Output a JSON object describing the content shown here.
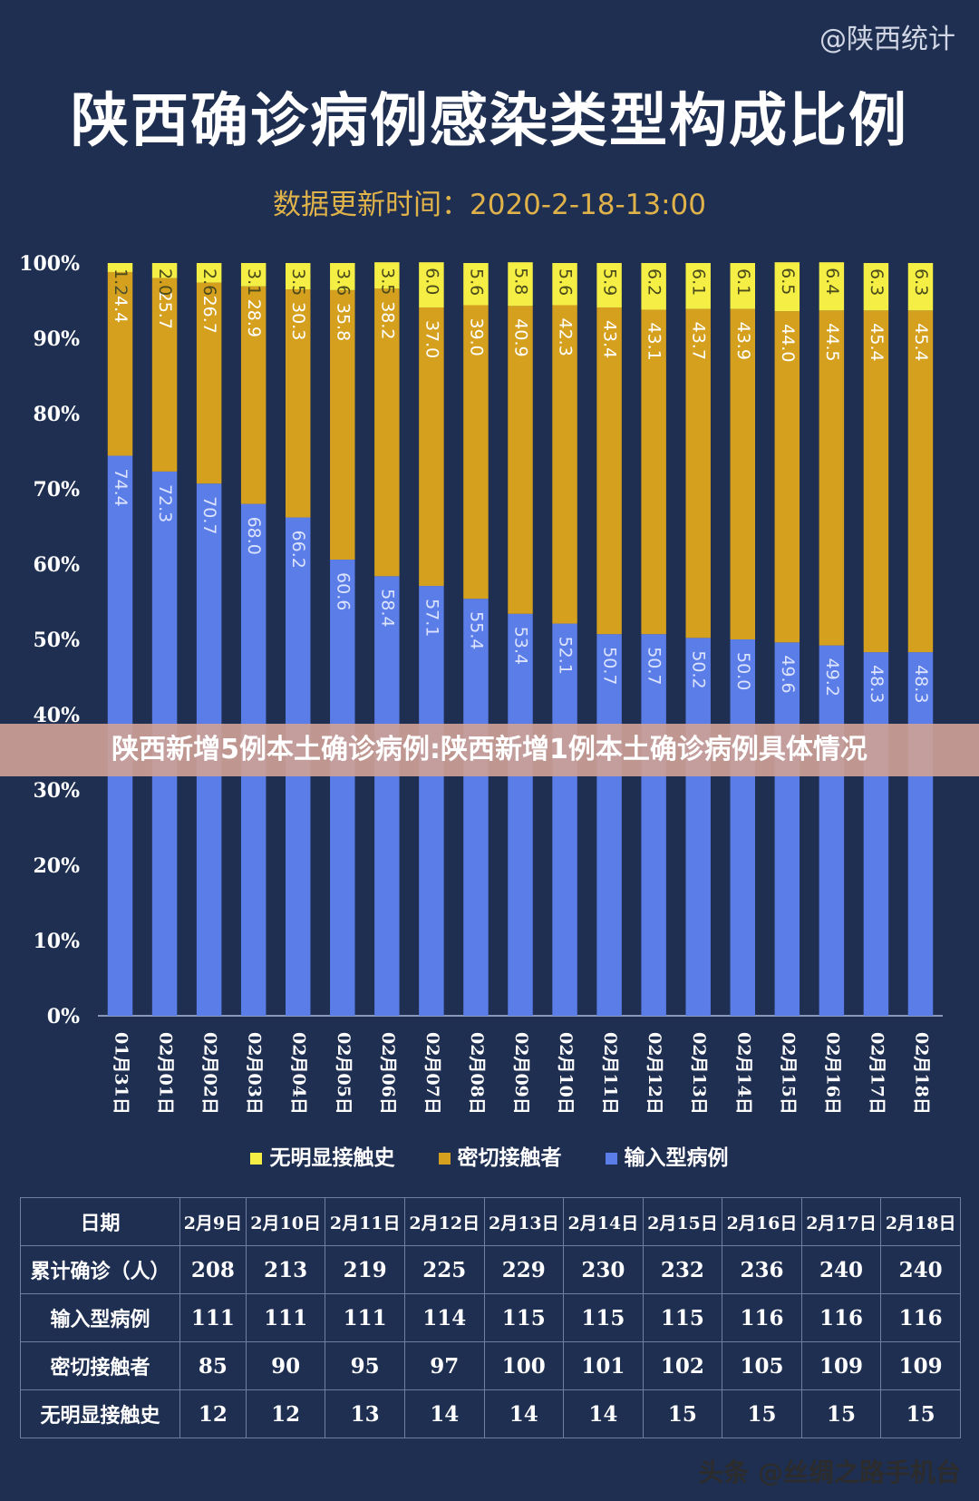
{
  "source": "@陕西统计",
  "title": "陕西确诊病例感染类型构成比例",
  "update_time": "数据更新时间：2020-2-18-13:00",
  "overlay_caption": "陕西新增5例本土确诊病例:陕西新增1例本土确诊病例具体情况",
  "watermark": "头条 @丝绸之路手机台",
  "colors": {
    "background": "#1f2f52",
    "input": "#5b7de8",
    "close_contact": "#d6a01f",
    "unknown_contact": "#f5ef45"
  },
  "legend": [
    {
      "label": "无明显接触史",
      "color": "#f5ef45"
    },
    {
      "label": "密切接触者",
      "color": "#d6a01f"
    },
    {
      "label": "输入型病例",
      "color": "#5b7de8"
    }
  ],
  "chart_data": {
    "type": "bar",
    "stacked": true,
    "categories": [
      "01月31日",
      "02月01日",
      "02月02日",
      "02月03日",
      "02月04日",
      "02月05日",
      "02月06日",
      "02月07日",
      "02月08日",
      "02月09日",
      "02月10日",
      "02月11日",
      "02月12日",
      "02月13日",
      "02月14日",
      "02月15日",
      "02月16日",
      "02月17日",
      "02月18日"
    ],
    "series": [
      {
        "name": "输入型病例",
        "values": [
          74.4,
          72.3,
          70.7,
          68.0,
          66.2,
          60.6,
          58.4,
          57.1,
          55.4,
          53.4,
          52.1,
          50.7,
          50.7,
          50.2,
          50.0,
          49.6,
          49.2,
          48.3,
          48.3
        ]
      },
      {
        "name": "密切接触者",
        "values": [
          24.4,
          25.7,
          26.7,
          28.9,
          30.3,
          35.8,
          38.2,
          37.0,
          39.0,
          40.9,
          42.3,
          43.4,
          43.1,
          43.7,
          43.9,
          44.0,
          44.5,
          45.4,
          45.4
        ]
      },
      {
        "name": "无明显接触史",
        "values": [
          1.2,
          2.0,
          2.6,
          3.1,
          3.5,
          3.6,
          3.5,
          6.0,
          5.6,
          5.8,
          5.6,
          5.9,
          6.2,
          6.1,
          6.1,
          6.5,
          6.4,
          6.3,
          6.3
        ]
      }
    ],
    "yticks": [
      "0%",
      "10%",
      "20%",
      "30%",
      "40%",
      "50%",
      "60%",
      "70%",
      "80%",
      "90%",
      "100%"
    ],
    "ylim": [
      0,
      100
    ],
    "legend_position": "bottom"
  },
  "table": {
    "headers": [
      "日期",
      "2月9日",
      "2月10日",
      "2月11日",
      "2月12日",
      "2月13日",
      "2月14日",
      "2月15日",
      "2月16日",
      "2月17日",
      "2月18日"
    ],
    "rows": [
      {
        "label": "累计确诊（人）",
        "values": [
          "208",
          "213",
          "219",
          "225",
          "229",
          "230",
          "232",
          "236",
          "240",
          "240"
        ]
      },
      {
        "label": "输入型病例",
        "values": [
          "111",
          "111",
          "111",
          "114",
          "115",
          "115",
          "115",
          "116",
          "116",
          "116"
        ]
      },
      {
        "label": "密切接触者",
        "values": [
          "85",
          "90",
          "95",
          "97",
          "100",
          "101",
          "102",
          "105",
          "109",
          "109"
        ]
      },
      {
        "label": "无明显接触史",
        "values": [
          "12",
          "12",
          "13",
          "14",
          "14",
          "14",
          "15",
          "15",
          "15",
          "15"
        ]
      }
    ]
  }
}
